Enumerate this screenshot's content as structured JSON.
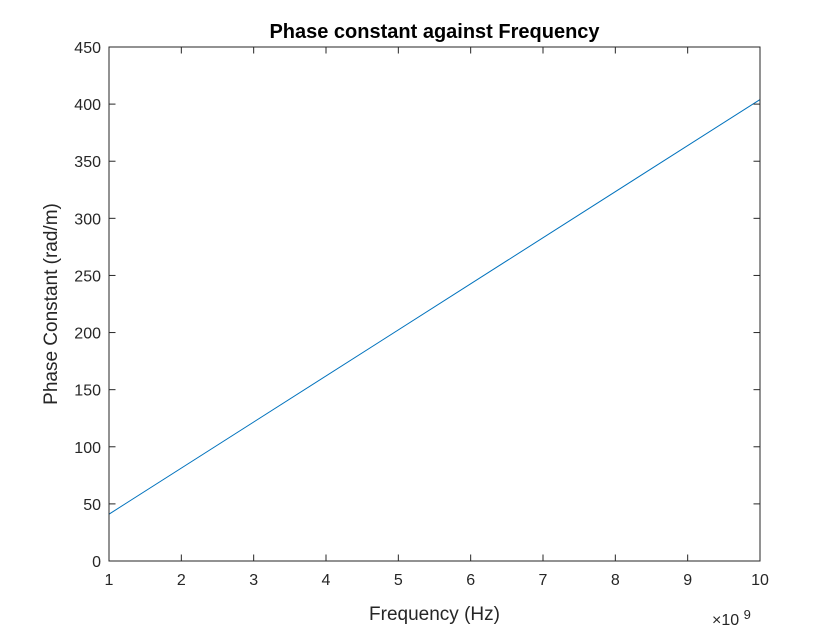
{
  "chart_data": {
    "type": "line",
    "title": "Phase constant against Frequency",
    "xlabel": "Frequency (Hz)",
    "ylabel": "Phase Constant (rad/m)",
    "x_exponent_base": "×10",
    "x_exponent_power": "9",
    "x_scale_factor": 1000000000,
    "xlim": [
      1,
      10
    ],
    "ylim": [
      0,
      450
    ],
    "x_ticks": [
      1,
      2,
      3,
      4,
      5,
      6,
      7,
      8,
      9,
      10
    ],
    "y_ticks": [
      0,
      50,
      100,
      150,
      200,
      250,
      300,
      350,
      400,
      450
    ],
    "grid": false,
    "series": [
      {
        "color": "#0072BD",
        "x": [
          1,
          10
        ],
        "y": [
          41,
          404
        ]
      }
    ]
  }
}
